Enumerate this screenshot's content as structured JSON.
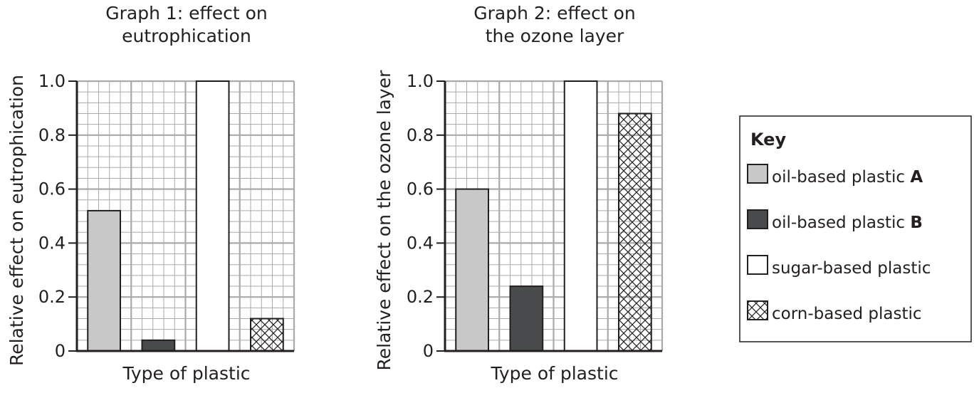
{
  "key": {
    "title": "Key",
    "items": [
      {
        "id": "A",
        "prefix": "oil-based plastic ",
        "bold": "A",
        "pattern": "fill-light"
      },
      {
        "id": "B",
        "prefix": "oil-based plastic ",
        "bold": "B",
        "pattern": "fill-dark"
      },
      {
        "id": "sugar",
        "prefix": "sugar-based plastic",
        "bold": "",
        "pattern": "fill-white"
      },
      {
        "id": "corn",
        "prefix": "corn-based plastic",
        "bold": "",
        "pattern": "crosshatch"
      }
    ]
  },
  "colors": {
    "light": "#c8c8c9",
    "dark": "#4a4b4d",
    "white": "#ffffff",
    "grid": "#aaaaaa",
    "ink": "#231f20"
  },
  "chart_data": [
    {
      "type": "bar",
      "title_lines": [
        "Graph 1: effect on",
        "eutrophication"
      ],
      "xlabel": "Type of plastic",
      "ylabel": "Relative effect on eutrophication",
      "ylim": [
        0,
        1.0
      ],
      "yticks": [
        "0",
        "0.2",
        "0.4",
        "0.6",
        "0.8",
        "1.0"
      ],
      "categories": [
        "oil-based plastic A",
        "oil-based plastic B",
        "sugar-based plastic",
        "corn-based plastic"
      ],
      "values": [
        0.52,
        0.04,
        1.0,
        0.12
      ],
      "grid": true
    },
    {
      "type": "bar",
      "title_lines": [
        "Graph 2: effect on",
        "the ozone layer"
      ],
      "xlabel": "Type of plastic",
      "ylabel": "Relative effect on the ozone layer",
      "ylim": [
        0,
        1.0
      ],
      "yticks": [
        "0",
        "0.2",
        "0.4",
        "0.6",
        "0.8",
        "1.0"
      ],
      "categories": [
        "oil-based plastic A",
        "oil-based plastic B",
        "sugar-based plastic",
        "corn-based plastic"
      ],
      "values": [
        0.6,
        0.24,
        1.0,
        0.88
      ],
      "grid": true
    }
  ]
}
